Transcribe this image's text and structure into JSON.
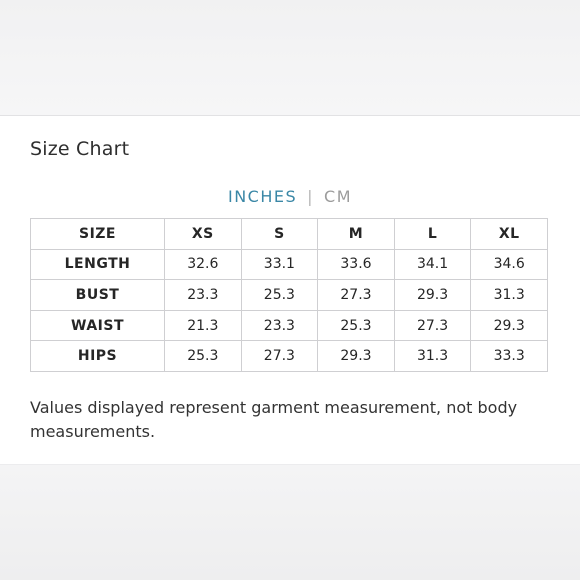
{
  "size_chart": {
    "title": "Size Chart",
    "units": {
      "active": "INCHES",
      "separator": "|",
      "inactive": "CM"
    },
    "table": {
      "header": [
        "SIZE",
        "XS",
        "S",
        "M",
        "L",
        "XL"
      ],
      "rows": [
        {
          "label": "LENGTH",
          "values": [
            "32.6",
            "33.1",
            "33.6",
            "34.1",
            "34.6"
          ]
        },
        {
          "label": "BUST",
          "values": [
            "23.3",
            "25.3",
            "27.3",
            "29.3",
            "31.3"
          ]
        },
        {
          "label": "WAIST",
          "values": [
            "21.3",
            "23.3",
            "25.3",
            "27.3",
            "29.3"
          ]
        },
        {
          "label": "HIPS",
          "values": [
            "25.3",
            "27.3",
            "29.3",
            "31.3",
            "33.3"
          ]
        }
      ]
    },
    "note": "Values displayed represent garment measurement, not body measurements."
  },
  "colors": {
    "accent": "#3a87a6",
    "text": "#2b2b2b",
    "border": "#cfcfd2"
  }
}
